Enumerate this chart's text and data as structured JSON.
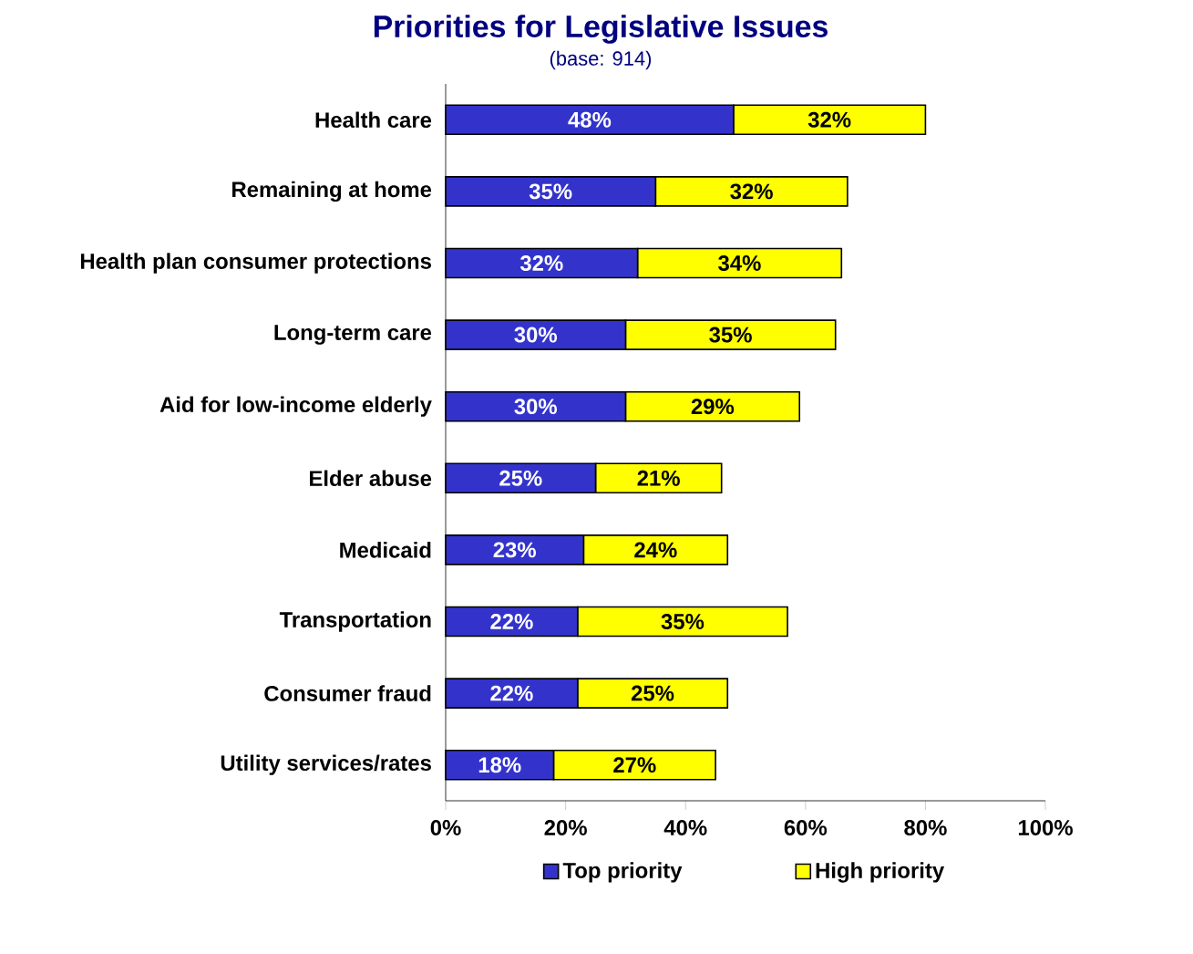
{
  "chart_data": {
    "type": "bar",
    "orientation": "horizontal",
    "stacked": true,
    "title": "Priorities for Legislative Issues",
    "subtitle": "(base:  914)",
    "categories": [
      "Health care",
      "Remaining at home",
      "Health plan consumer protections",
      "Long-term care",
      "Aid for low-income elderly",
      "Elder abuse",
      "Medicaid",
      "Transportation",
      "Consumer fraud",
      "Utility services/rates"
    ],
    "series": [
      {
        "name": "Top priority",
        "color": "#3333cc",
        "values": [
          48,
          35,
          32,
          30,
          30,
          25,
          23,
          22,
          22,
          18
        ],
        "value_labels": [
          "48%",
          "35%",
          "32%",
          "30%",
          "30%",
          "25%",
          "23%",
          "22%",
          "22%",
          "18%"
        ]
      },
      {
        "name": "High priority",
        "color": "#ffff00",
        "values": [
          32,
          32,
          34,
          35,
          29,
          21,
          24,
          35,
          25,
          27
        ],
        "value_labels": [
          "32%",
          "32%",
          "34%",
          "35%",
          "29%",
          "21%",
          "24%",
          "35%",
          "25%",
          "27%"
        ]
      }
    ],
    "xlim": [
      0,
      100
    ],
    "xticks": [
      {
        "value": 0,
        "label": "0%"
      },
      {
        "value": 20,
        "label": "20%"
      },
      {
        "value": 40,
        "label": "40%"
      },
      {
        "value": 60,
        "label": "60%"
      },
      {
        "value": 80,
        "label": "80%"
      },
      {
        "value": 100,
        "label": "100%"
      }
    ],
    "legend": "bottom"
  }
}
